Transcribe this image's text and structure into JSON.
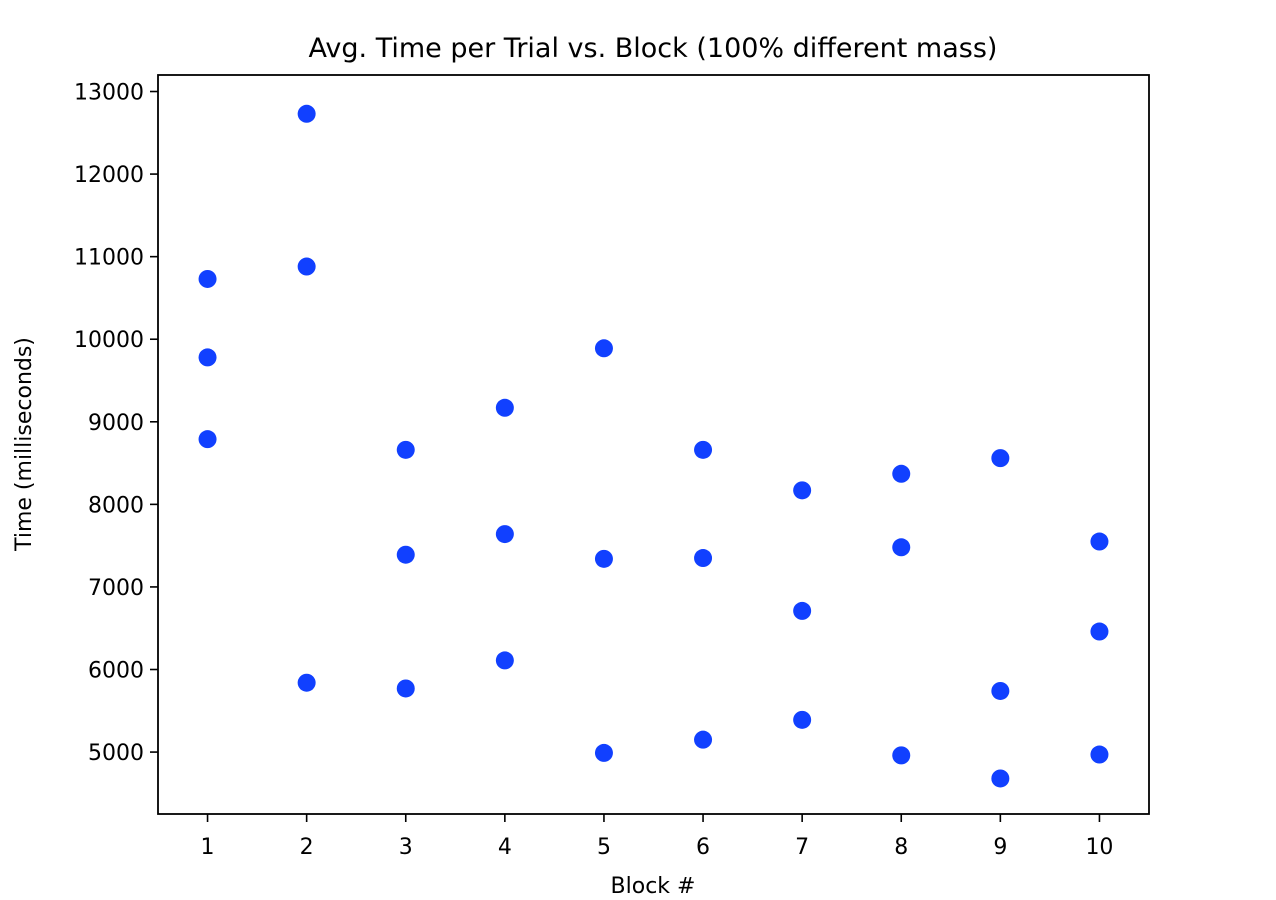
{
  "chart_data": {
    "type": "scatter",
    "title": "Avg. Time per Trial vs. Block (100% different mass)",
    "xlabel": "Block #",
    "ylabel": "Time (milliseconds)",
    "xlim": [
      0.5,
      10.5
    ],
    "ylim": [
      4250,
      13200
    ],
    "x_ticks": [
      1,
      2,
      3,
      4,
      5,
      6,
      7,
      8,
      9,
      10
    ],
    "y_ticks": [
      5000,
      6000,
      7000,
      8000,
      9000,
      10000,
      11000,
      12000,
      13000
    ],
    "grid": false,
    "marker_color": "#1140ff",
    "series": [
      {
        "points": [
          {
            "x": 1,
            "y": 10730
          },
          {
            "x": 1,
            "y": 9780
          },
          {
            "x": 1,
            "y": 8790
          },
          {
            "x": 2,
            "y": 12730
          },
          {
            "x": 2,
            "y": 10880
          },
          {
            "x": 2,
            "y": 5840
          },
          {
            "x": 3,
            "y": 8660
          },
          {
            "x": 3,
            "y": 7390
          },
          {
            "x": 3,
            "y": 5770
          },
          {
            "x": 4,
            "y": 9170
          },
          {
            "x": 4,
            "y": 7640
          },
          {
            "x": 4,
            "y": 6110
          },
          {
            "x": 5,
            "y": 9890
          },
          {
            "x": 5,
            "y": 7340
          },
          {
            "x": 5,
            "y": 4990
          },
          {
            "x": 6,
            "y": 8660
          },
          {
            "x": 6,
            "y": 7350
          },
          {
            "x": 6,
            "y": 5150
          },
          {
            "x": 7,
            "y": 8170
          },
          {
            "x": 7,
            "y": 6710
          },
          {
            "x": 7,
            "y": 5390
          },
          {
            "x": 8,
            "y": 8370
          },
          {
            "x": 8,
            "y": 7480
          },
          {
            "x": 8,
            "y": 4960
          },
          {
            "x": 9,
            "y": 8560
          },
          {
            "x": 9,
            "y": 5740
          },
          {
            "x": 9,
            "y": 4680
          },
          {
            "x": 10,
            "y": 7550
          },
          {
            "x": 10,
            "y": 6460
          },
          {
            "x": 10,
            "y": 4970
          }
        ]
      }
    ]
  }
}
